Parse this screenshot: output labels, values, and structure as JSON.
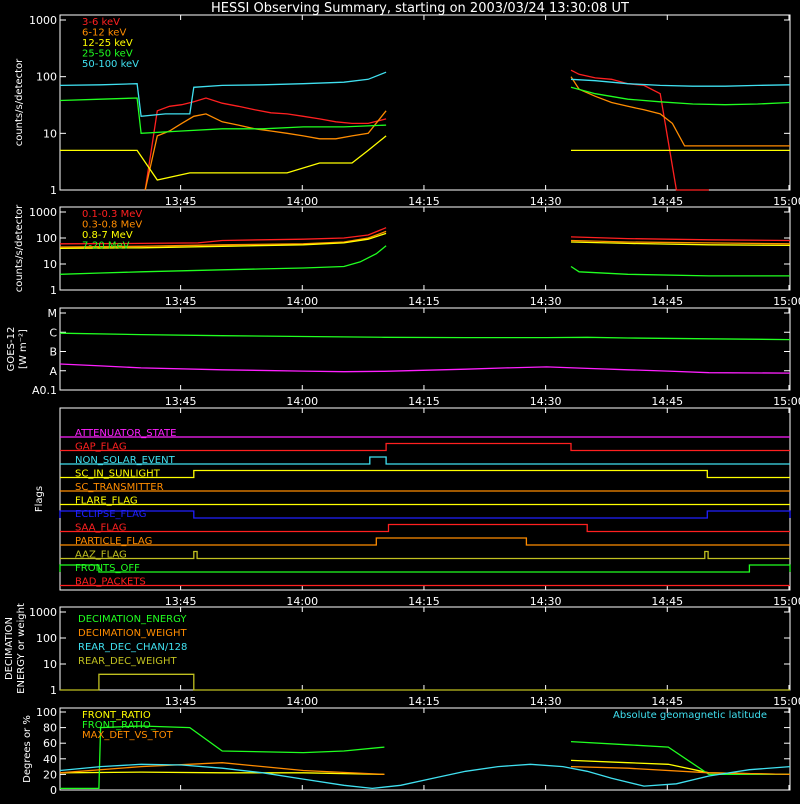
{
  "title": "HESSI Observing Summary, starting on 2003/03/24 13:30:08 UT",
  "x_ticks": [
    "13:45",
    "14:00",
    "14:15",
    "14:30",
    "14:45",
    "15:00"
  ],
  "chart_data": [
    {
      "type": "line",
      "panel": "low-energy count rates",
      "ylabel": "counts/s/detector",
      "yscale": "log",
      "ylim": [
        1,
        1000
      ],
      "ytick_labels": [
        "1",
        "10",
        "100",
        "1000"
      ],
      "x_units": "minutes after 13:30:08 UT",
      "xlim": [
        0,
        90
      ],
      "legend_placement": "top-left",
      "series": [
        {
          "name": "3-6 keV",
          "color": "#ff2020",
          "segments": [
            {
              "x": [
                10.5,
                12,
                13.5,
                15,
                16.5,
                18,
                20,
                22,
                24,
                26,
                28,
                30,
                32,
                34,
                36,
                38,
                40.2
              ],
              "y": [
                1,
                25,
                30,
                32,
                36,
                42,
                34,
                30,
                26,
                23,
                22,
                20,
                18,
                16,
                15,
                15,
                18
              ]
            },
            {
              "x": [
                63,
                64,
                66,
                68,
                70,
                72,
                74,
                76,
                78,
                80
              ],
              "y": [
                130,
                110,
                95,
                90,
                75,
                70,
                50,
                1,
                1,
                1
              ]
            }
          ]
        },
        {
          "name": "6-12 keV",
          "color": "#ff8c00",
          "segments": [
            {
              "x": [
                10.5,
                12,
                13.5,
                15,
                16.5,
                18,
                20,
                22,
                24,
                26,
                28,
                30,
                32,
                34,
                36,
                38,
                40.2
              ],
              "y": [
                1,
                9,
                11,
                15,
                20,
                22,
                16,
                14,
                12,
                11,
                10,
                9,
                8,
                8,
                9,
                10,
                25
              ]
            },
            {
              "x": [
                63,
                64,
                66,
                68,
                70,
                72,
                74,
                75.5,
                77,
                80,
                84,
                88,
                90
              ],
              "y": [
                100,
                60,
                45,
                35,
                30,
                26,
                22,
                15,
                6,
                6,
                6,
                6,
                6
              ]
            }
          ]
        },
        {
          "name": "12-25 keV",
          "color": "#ffff00",
          "segments": [
            {
              "x": [
                0,
                2,
                4,
                6,
                8,
                9.5,
                12,
                16,
                20,
                24,
                28,
                32,
                36,
                38,
                40.2
              ],
              "y": [
                5,
                5,
                5,
                5,
                5,
                5,
                1.5,
                2,
                2,
                2,
                2,
                3,
                3,
                5,
                9
              ]
            },
            {
              "x": [
                63,
                66,
                70,
                74,
                78,
                82,
                86,
                90
              ],
              "y": [
                5,
                5,
                5,
                5,
                5,
                5,
                5,
                5
              ]
            }
          ]
        },
        {
          "name": "25-50 keV",
          "color": "#20ff20",
          "segments": [
            {
              "x": [
                0,
                5,
                9.5,
                10,
                15,
                20,
                25,
                30,
                35,
                40.2
              ],
              "y": [
                38,
                40,
                42,
                10,
                11,
                12,
                12,
                13,
                13,
                14
              ]
            },
            {
              "x": [
                63,
                66,
                70,
                74,
                78,
                82,
                86,
                90
              ],
              "y": [
                65,
                50,
                40,
                36,
                33,
                32,
                33,
                35
              ]
            }
          ]
        },
        {
          "name": "50-100 keV",
          "color": "#40e0f0",
          "segments": [
            {
              "x": [
                0,
                5,
                9.5,
                10,
                13,
                16,
                16.5,
                20,
                25,
                30,
                35,
                38,
                40.2
              ],
              "y": [
                70,
                72,
                75,
                20,
                22,
                22,
                65,
                70,
                72,
                75,
                80,
                90,
                120
              ]
            },
            {
              "x": [
                63,
                66,
                70,
                74,
                78,
                82,
                86,
                90
              ],
              "y": [
                90,
                85,
                75,
                70,
                68,
                68,
                70,
                72
              ]
            }
          ]
        }
      ]
    },
    {
      "type": "line",
      "panel": "high-energy count rates",
      "ylabel": "counts/s/detector",
      "yscale": "log",
      "ylim": [
        1,
        1000
      ],
      "ytick_labels": [
        "1",
        "10",
        "100",
        "1000"
      ],
      "legend_placement": "top-left",
      "series": [
        {
          "name": "0.1-0.3 MeV",
          "color": "#ff2020",
          "segments": [
            {
              "x": [
                0,
                10,
                17,
                20,
                25,
                30,
                35,
                38,
                40.2
              ],
              "y": [
                60,
                62,
                65,
                80,
                85,
                90,
                100,
                130,
                250
              ]
            },
            {
              "x": [
                63,
                70,
                80,
                90
              ],
              "y": [
                110,
                95,
                85,
                80
              ]
            }
          ]
        },
        {
          "name": "0.3-0.8 MeV",
          "color": "#ff8c00",
          "segments": [
            {
              "x": [
                0,
                10,
                20,
                30,
                35,
                38,
                40.2
              ],
              "y": [
                45,
                48,
                55,
                60,
                70,
                100,
                180
              ]
            },
            {
              "x": [
                63,
                70,
                80,
                90
              ],
              "y": [
                80,
                70,
                65,
                60
              ]
            }
          ]
        },
        {
          "name": "0.8-7 MeV",
          "color": "#ffff00",
          "segments": [
            {
              "x": [
                0,
                10,
                20,
                30,
                35,
                38,
                40.2
              ],
              "y": [
                40,
                42,
                48,
                55,
                65,
                90,
                150
              ]
            },
            {
              "x": [
                63,
                70,
                80,
                90
              ],
              "y": [
                70,
                62,
                55,
                52
              ]
            }
          ]
        },
        {
          "name": "7-20 MeV",
          "color": "#20ff20",
          "segments": [
            {
              "x": [
                0,
                5,
                10,
                15,
                20,
                25,
                30,
                35,
                37,
                39,
                40.2
              ],
              "y": [
                4,
                4.5,
                5,
                5.5,
                6,
                6.5,
                7,
                8,
                12,
                25,
                50
              ]
            },
            {
              "x": [
                63,
                64,
                70,
                80,
                90
              ],
              "y": [
                8,
                5,
                4,
                3.5,
                3.5
              ]
            }
          ]
        }
      ]
    },
    {
      "type": "line",
      "panel": "GOES",
      "ylabel": "GOES-12",
      "ylabel_units": "[W m⁻²]",
      "ytick_labels": [
        "A0.1",
        "A",
        "B",
        "C",
        "M"
      ],
      "series": [
        {
          "color": "#20ff20",
          "x": [
            0,
            10,
            20,
            30,
            40,
            50,
            60,
            65,
            70,
            80,
            90
          ],
          "y_level": [
            2.95,
            2.88,
            2.82,
            2.78,
            2.74,
            2.72,
            2.72,
            2.74,
            2.7,
            2.66,
            2.62
          ]
        },
        {
          "color": "#ff20ff",
          "x": [
            0,
            5,
            10,
            20,
            30,
            35,
            40,
            50,
            55,
            60,
            65,
            70,
            75,
            80,
            90
          ],
          "y_level": [
            1.35,
            1.25,
            1.15,
            1.05,
            0.98,
            0.95,
            0.97,
            1.08,
            1.15,
            1.2,
            1.12,
            1.05,
            0.98,
            0.9,
            0.88
          ]
        }
      ]
    },
    {
      "type": "step",
      "panel": "Flags",
      "ylabel": "Flags",
      "flags": [
        {
          "name": "ATTENUATOR_STATE",
          "color": "#ff20ff",
          "intervals": []
        },
        {
          "name": "GAP_FLAG",
          "color": "#ff2020",
          "intervals": [
            [
              40.2,
              63.0
            ]
          ]
        },
        {
          "name": "NON_SOLAR_EVENT",
          "color": "#40e0f0",
          "intervals": [
            [
              38.2,
              40.2
            ]
          ]
        },
        {
          "name": "SC_IN_SUNLIGHT",
          "color": "#ffff00",
          "intervals": [
            [
              16.5,
              79.8
            ]
          ]
        },
        {
          "name": "SC_TRANSMITTER",
          "color": "#ff8c00",
          "intervals": []
        },
        {
          "name": "FLARE_FLAG",
          "color": "#ffff00",
          "intervals": []
        },
        {
          "name": "ECLIPSE_FLAG",
          "color": "#2020ff",
          "intervals": [
            [
              0,
              16.5
            ],
            [
              79.8,
              90
            ]
          ]
        },
        {
          "name": "SAA_FLAG",
          "color": "#ff2020",
          "intervals": [
            [
              40.5,
              65.0
            ]
          ]
        },
        {
          "name": "PARTICLE_FLAG",
          "color": "#ff8c00",
          "intervals": [
            [
              39.0,
              57.5
            ]
          ]
        },
        {
          "name": "AAZ_FLAG",
          "color": "#c0c020",
          "intervals": [
            [
              16.5,
              16.9
            ],
            [
              79.5,
              79.9
            ]
          ]
        },
        {
          "name": "FRONTS_OFF",
          "color": "#20ff20",
          "intervals": [
            [
              0,
              4.8
            ],
            [
              85.0,
              90
            ]
          ]
        },
        {
          "name": "BAD_PACKETS",
          "color": "#ff2020",
          "intervals": []
        }
      ]
    },
    {
      "type": "step",
      "panel": "Decimation",
      "ylabel": "DECIMATION ENERGY or weight",
      "yscale": "log",
      "ylim": [
        1,
        1000
      ],
      "ytick_labels": [
        "1",
        "10",
        "100",
        "1000"
      ],
      "legend_placement": "top-left",
      "series": [
        {
          "name": "DECIMATION_ENERGY",
          "color": "#20ff20"
        },
        {
          "name": "DECIMATION_WEIGHT",
          "color": "#ff8c00"
        },
        {
          "name": "REAR_DEC_CHAN/128",
          "color": "#40e0f0"
        },
        {
          "name": "REAR_DEC_WEIGHT",
          "color": "#c0c020",
          "x": [
            0,
            4.8,
            4.8,
            16.5,
            16.5,
            90
          ],
          "y": [
            1,
            1,
            4,
            4,
            1,
            1
          ]
        }
      ]
    },
    {
      "type": "line",
      "panel": "Ratios",
      "ylabel": "Degrees or %",
      "ylim": [
        0,
        100
      ],
      "ytick_labels": [
        "0",
        "20",
        "40",
        "60",
        "80",
        "100"
      ],
      "annotation": "Absolute geomagnetic latitude",
      "legend_placement": "top-left",
      "series": [
        {
          "name": "FRONT_RATIO",
          "color": "#ffff00",
          "segments": [
            {
              "x": [
                0,
                10,
                20,
                30,
                40
              ],
              "y": [
                22,
                23,
                22,
                22,
                20
              ]
            },
            {
              "x": [
                63,
                70,
                75,
                80,
                90
              ],
              "y": [
                38,
                35,
                33,
                22,
                20
              ]
            }
          ]
        },
        {
          "name": "FRONT_RATIO_",
          "color": "#20ff20",
          "segments": [
            {
              "x": [
                0,
                4.8,
                5,
                10,
                16,
                20,
                30,
                35,
                40
              ],
              "y": [
                2,
                2,
                80,
                82,
                80,
                50,
                48,
                50,
                55
              ]
            },
            {
              "x": [
                63,
                70,
                75,
                80,
                85,
                90
              ],
              "y": [
                62,
                58,
                55,
                20,
                20,
                20
              ]
            }
          ]
        },
        {
          "name": "MAX_DET_VS_TOT",
          "color": "#ff8c00",
          "segments": [
            {
              "x": [
                0,
                10,
                20,
                30,
                40
              ],
              "y": [
                22,
                30,
                35,
                25,
                20
              ]
            },
            {
              "x": [
                63,
                70,
                80,
                90
              ],
              "y": [
                30,
                28,
                22,
                20
              ]
            }
          ]
        },
        {
          "name": "Absolute geomagnetic latitude",
          "color": "#40e0f0",
          "x": [
            0,
            5,
            10,
            15,
            20,
            25,
            30,
            35,
            38.5,
            42,
            46,
            50,
            54,
            58,
            62,
            65,
            68,
            72,
            76,
            80,
            85,
            90
          ],
          "y": [
            25,
            30,
            33,
            32,
            28,
            22,
            14,
            6,
            2,
            6,
            15,
            24,
            30,
            33,
            30,
            24,
            15,
            5,
            8,
            18,
            26,
            30
          ]
        }
      ]
    }
  ]
}
